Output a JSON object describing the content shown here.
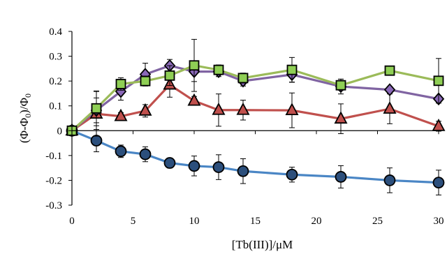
{
  "chart_data": {
    "type": "line",
    "xlabel": "[Tb(III)]/μM",
    "ylabel": "(Φ-Φ",
    "ylabel_sub_mid": "0",
    "ylabel_mid": ")/Φ",
    "ylabel_sub_end": "0",
    "xlim": [
      0,
      30
    ],
    "ylim": [
      -0.3,
      0.4
    ],
    "x_ticks": [
      0,
      5,
      10,
      15,
      20,
      25,
      30
    ],
    "x_tick_labels": [
      "0",
      "5",
      "10",
      "15",
      "20",
      "25",
      "30"
    ],
    "y_ticks": [
      -0.3,
      -0.2,
      -0.1,
      0,
      0.1,
      0.2,
      0.3,
      0.4
    ],
    "y_tick_labels": [
      "-0.3",
      "-0.2",
      "-0.1",
      "0",
      "0.1",
      "0.2",
      "0.3",
      "0.4"
    ],
    "grid": false,
    "legend": "none",
    "series": [
      {
        "marker": "circle",
        "line_color": "#4a86c5",
        "marker_fill": "#2c4f7c",
        "x": [
          0,
          2,
          4,
          6,
          8,
          10,
          12,
          14,
          18,
          22,
          26,
          30
        ],
        "y": [
          0,
          -0.04,
          -0.083,
          -0.095,
          -0.13,
          -0.142,
          -0.147,
          -0.163,
          -0.177,
          -0.186,
          -0.2,
          -0.209
        ],
        "err": [
          0,
          0.045,
          0.025,
          0.03,
          0.02,
          0.04,
          0.05,
          0.05,
          0.03,
          0.045,
          0.05,
          0.05
        ]
      },
      {
        "marker": "triangle",
        "line_color": "#c0504d",
        "marker_fill": "#c0504d",
        "x": [
          0,
          2,
          4,
          6,
          8,
          10,
          12,
          14,
          18,
          22,
          26,
          30
        ],
        "y": [
          0,
          0.068,
          0.058,
          0.08,
          0.185,
          0.12,
          0.083,
          0.083,
          0.082,
          0.048,
          0.088,
          0.018
        ],
        "err": [
          0,
          0.09,
          0.015,
          0.025,
          0.05,
          0.018,
          0.065,
          0.04,
          0.07,
          0.06,
          0.06,
          0.02
        ]
      },
      {
        "marker": "diamond",
        "line_color": "#8064a2",
        "marker_fill": "#8a68b8",
        "x": [
          0,
          2,
          4,
          6,
          8,
          10,
          12,
          14,
          18,
          22,
          26,
          30
        ],
        "y": [
          0,
          0.082,
          0.158,
          0.227,
          0.262,
          0.238,
          0.238,
          0.2,
          0.226,
          0.178,
          0.165,
          0.128
        ],
        "err": [
          0,
          0.05,
          0.035,
          0.045,
          0.025,
          0.04,
          0.02,
          0.02,
          0.03,
          0.03,
          0.01,
          0.01
        ]
      },
      {
        "marker": "square",
        "line_color": "#9bbb59",
        "marker_fill": "#8fcf55",
        "x": [
          0,
          2,
          4,
          6,
          8,
          10,
          12,
          14,
          18,
          22,
          26,
          30
        ],
        "y": [
          0,
          0.09,
          0.188,
          0.2,
          0.222,
          0.263,
          0.245,
          0.212,
          0.245,
          0.183,
          0.242,
          0.201
        ],
        "err": [
          0,
          0.07,
          0.025,
          0.02,
          0.04,
          0.105,
          0.02,
          0.02,
          0.05,
          0.02,
          0.015,
          0.09
        ]
      }
    ]
  }
}
